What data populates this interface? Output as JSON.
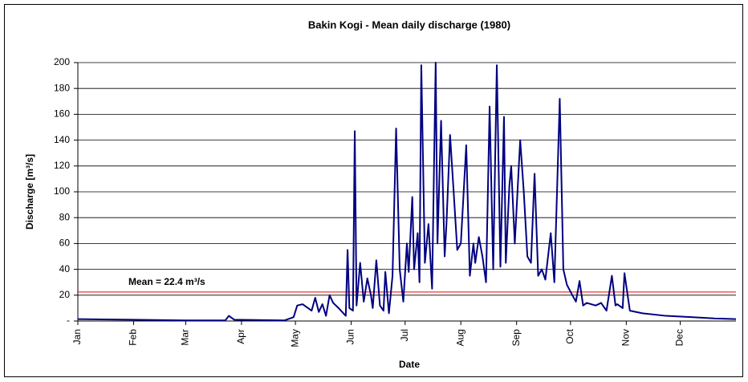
{
  "chart_data": {
    "type": "line",
    "title": "Bakin Kogi - Mean daily discharge (1980)",
    "x_label": "Date",
    "y_label": "Discharge [m³/s]",
    "xlim": [
      0,
      366
    ],
    "xticks": [
      {
        "value": 0,
        "label": "Jan"
      },
      {
        "value": 31,
        "label": "Feb"
      },
      {
        "value": 60,
        "label": "Mar"
      },
      {
        "value": 91,
        "label": "Apr"
      },
      {
        "value": 121,
        "label": "May"
      },
      {
        "value": 152,
        "label": "Jun"
      },
      {
        "value": 182,
        "label": "Jul"
      },
      {
        "value": 213,
        "label": "Aug"
      },
      {
        "value": 244,
        "label": "Sep"
      },
      {
        "value": 274,
        "label": "Oct"
      },
      {
        "value": 305,
        "label": "Nov"
      },
      {
        "value": 335,
        "label": "Dec"
      }
    ],
    "ylim": [
      0,
      200
    ],
    "yticks": [
      {
        "value": 0,
        "label": "-"
      },
      20,
      40,
      60,
      80,
      100,
      120,
      140,
      160,
      180,
      200
    ],
    "grid": true,
    "mean": 22.4,
    "mean_color": "#ff0000",
    "annotation": "Mean = 22.4 m³/s",
    "x": [
      0,
      30,
      60,
      82,
      84,
      87,
      115,
      120,
      122,
      125,
      130,
      132,
      134,
      136,
      138,
      140,
      142,
      145,
      149,
      150,
      151,
      153,
      154,
      155,
      157,
      159,
      161,
      163,
      164,
      166,
      168,
      170,
      171,
      173,
      175,
      177,
      179,
      181,
      183,
      184,
      186,
      187,
      189,
      190,
      191,
      193,
      195,
      197,
      199,
      200,
      202,
      204,
      205,
      207,
      209,
      211,
      213,
      216,
      218,
      220,
      221,
      223,
      225,
      227,
      229,
      231,
      233,
      235,
      237,
      238,
      240,
      241,
      243,
      246,
      248,
      250,
      252,
      254,
      256,
      258,
      260,
      263,
      265,
      268,
      270,
      272,
      275,
      277,
      279,
      281,
      283,
      288,
      291,
      294,
      297,
      299,
      300,
      303,
      304,
      307,
      314,
      327,
      341,
      354,
      366
    ],
    "series": [
      {
        "color": "#000080",
        "values": [
          1.5,
          1,
          0.5,
          0.5,
          4,
          1,
          0.5,
          3,
          12,
          13,
          8,
          18,
          7,
          13,
          4,
          20,
          14,
          10,
          4,
          55,
          10,
          8,
          147,
          12,
          45,
          15,
          33,
          20,
          10,
          47,
          12,
          8,
          38,
          6,
          35,
          149,
          40,
          15,
          60,
          38,
          96,
          40,
          68,
          30,
          198,
          45,
          75,
          25,
          200,
          60,
          155,
          50,
          75,
          144,
          100,
          55,
          60,
          136,
          35,
          60,
          45,
          65,
          50,
          30,
          166,
          40,
          198,
          42,
          158,
          45,
          105,
          120,
          60,
          140,
          100,
          50,
          45,
          114,
          35,
          40,
          32,
          68,
          30,
          172,
          40,
          28,
          20,
          15,
          31,
          12,
          14,
          12,
          14,
          8,
          35,
          12,
          13,
          10,
          37,
          8,
          6,
          4,
          3,
          2,
          1.5
        ]
      }
    ]
  }
}
